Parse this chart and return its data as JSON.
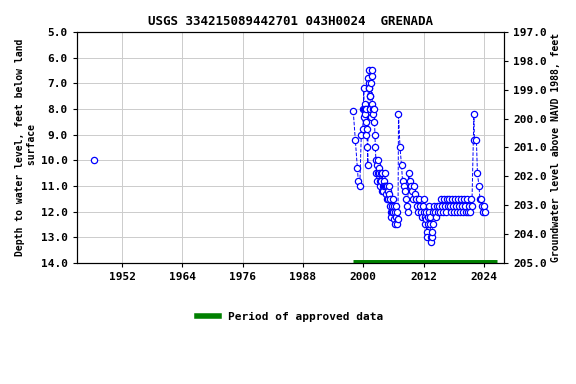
{
  "title": "USGS 334215089442701 043H0024  GRENADA",
  "ylabel_left": "Depth to water level, feet below land\n surface",
  "ylabel_right": "Groundwater level above NAVD 1988, feet",
  "xlim": [
    1943,
    2028
  ],
  "ylim_left": [
    5.0,
    14.0
  ],
  "ylim_right": [
    205.0,
    197.0
  ],
  "xticks": [
    1952,
    1964,
    1976,
    1988,
    2000,
    2012,
    2024
  ],
  "yticks_left": [
    5.0,
    6.0,
    7.0,
    8.0,
    9.0,
    10.0,
    11.0,
    12.0,
    13.0,
    14.0
  ],
  "yticks_right": [
    205.0,
    204.0,
    203.0,
    202.0,
    201.0,
    200.0,
    199.0,
    198.0,
    197.0
  ],
  "background_color": "#ffffff",
  "plot_bg_color": "#ffffff",
  "grid_color": "#cccccc",
  "data_color": "#0000ff",
  "legend_color": "#008000",
  "approved_bar_start": 1998.0,
  "approved_bar_end": 2026.5,
  "approved_bar_y": 14.0,
  "single_point_x": 1946.5,
  "single_point_y": 10.0,
  "data_points": [
    [
      1998.0,
      8.1
    ],
    [
      1998.4,
      9.2
    ],
    [
      1998.8,
      10.3
    ],
    [
      1999.0,
      10.8
    ],
    [
      1999.3,
      11.0
    ],
    [
      1999.6,
      9.0
    ],
    [
      1999.9,
      8.8
    ],
    [
      2000.0,
      8.0
    ],
    [
      2000.1,
      7.2
    ],
    [
      2000.15,
      8.0
    ],
    [
      2000.2,
      8.3
    ],
    [
      2000.3,
      7.8
    ],
    [
      2000.35,
      8.0
    ],
    [
      2000.4,
      8.2
    ],
    [
      2000.5,
      8.5
    ],
    [
      2000.55,
      8.0
    ],
    [
      2000.6,
      9.0
    ],
    [
      2000.7,
      8.8
    ],
    [
      2000.8,
      9.5
    ],
    [
      2000.9,
      10.2
    ],
    [
      2001.0,
      6.8
    ],
    [
      2001.05,
      7.2
    ],
    [
      2001.1,
      7.0
    ],
    [
      2001.15,
      6.5
    ],
    [
      2001.2,
      7.2
    ],
    [
      2001.25,
      7.5
    ],
    [
      2001.3,
      7.5
    ],
    [
      2001.35,
      8.0
    ],
    [
      2001.4,
      8.0
    ],
    [
      2001.5,
      8.3
    ],
    [
      2001.6,
      7.0
    ],
    [
      2001.65,
      6.7
    ],
    [
      2001.7,
      6.5
    ],
    [
      2001.8,
      7.8
    ],
    [
      2001.9,
      8.0
    ],
    [
      2002.0,
      8.2
    ],
    [
      2002.1,
      8.5
    ],
    [
      2002.2,
      8.0
    ],
    [
      2002.3,
      9.0
    ],
    [
      2002.4,
      9.5
    ],
    [
      2002.5,
      10.0
    ],
    [
      2002.6,
      10.5
    ],
    [
      2002.7,
      10.8
    ],
    [
      2002.8,
      10.2
    ],
    [
      2002.9,
      10.5
    ],
    [
      2003.0,
      10.0
    ],
    [
      2003.1,
      10.3
    ],
    [
      2003.2,
      10.5
    ],
    [
      2003.3,
      10.8
    ],
    [
      2003.4,
      11.0
    ],
    [
      2003.5,
      10.5
    ],
    [
      2003.6,
      10.8
    ],
    [
      2003.7,
      11.2
    ],
    [
      2003.8,
      10.5
    ],
    [
      2003.9,
      11.0
    ],
    [
      2004.0,
      11.2
    ],
    [
      2004.1,
      10.8
    ],
    [
      2004.2,
      11.0
    ],
    [
      2004.3,
      10.5
    ],
    [
      2004.4,
      11.0
    ],
    [
      2004.5,
      11.3
    ],
    [
      2004.6,
      11.0
    ],
    [
      2004.7,
      11.5
    ],
    [
      2004.8,
      11.0
    ],
    [
      2004.9,
      11.2
    ],
    [
      2005.0,
      11.5
    ],
    [
      2005.1,
      11.0
    ],
    [
      2005.2,
      11.3
    ],
    [
      2005.3,
      11.8
    ],
    [
      2005.4,
      11.5
    ],
    [
      2005.5,
      12.0
    ],
    [
      2005.6,
      12.2
    ],
    [
      2005.7,
      11.8
    ],
    [
      2005.8,
      12.0
    ],
    [
      2005.9,
      11.5
    ],
    [
      2006.0,
      12.0
    ],
    [
      2006.1,
      11.8
    ],
    [
      2006.2,
      12.3
    ],
    [
      2006.3,
      12.0
    ],
    [
      2006.4,
      12.5
    ],
    [
      2006.5,
      12.2
    ],
    [
      2006.6,
      11.8
    ],
    [
      2006.7,
      12.0
    ],
    [
      2006.8,
      12.5
    ],
    [
      2006.9,
      12.3
    ],
    [
      2007.0,
      8.2
    ],
    [
      2007.3,
      9.5
    ],
    [
      2007.6,
      10.2
    ],
    [
      2007.8,
      10.8
    ],
    [
      2008.0,
      11.0
    ],
    [
      2008.2,
      11.2
    ],
    [
      2008.4,
      11.5
    ],
    [
      2008.6,
      11.8
    ],
    [
      2008.8,
      12.0
    ],
    [
      2009.0,
      10.5
    ],
    [
      2009.2,
      10.8
    ],
    [
      2009.4,
      11.0
    ],
    [
      2009.6,
      11.2
    ],
    [
      2009.8,
      11.5
    ],
    [
      2010.0,
      11.0
    ],
    [
      2010.2,
      11.3
    ],
    [
      2010.4,
      11.5
    ],
    [
      2010.6,
      11.8
    ],
    [
      2010.8,
      12.0
    ],
    [
      2011.0,
      11.5
    ],
    [
      2011.2,
      11.8
    ],
    [
      2011.4,
      12.0
    ],
    [
      2011.6,
      12.2
    ],
    [
      2011.8,
      11.8
    ],
    [
      2012.0,
      12.0
    ],
    [
      2012.1,
      11.5
    ],
    [
      2012.2,
      12.2
    ],
    [
      2012.3,
      12.5
    ],
    [
      2012.4,
      12.0
    ],
    [
      2012.5,
      12.3
    ],
    [
      2012.6,
      12.8
    ],
    [
      2012.7,
      13.0
    ],
    [
      2012.8,
      12.5
    ],
    [
      2012.9,
      12.2
    ],
    [
      2013.0,
      12.0
    ],
    [
      2013.1,
      11.8
    ],
    [
      2013.2,
      12.2
    ],
    [
      2013.3,
      12.5
    ],
    [
      2013.4,
      13.0
    ],
    [
      2013.5,
      13.2
    ],
    [
      2013.6,
      13.0
    ],
    [
      2013.7,
      12.8
    ],
    [
      2013.8,
      12.5
    ],
    [
      2013.9,
      12.0
    ],
    [
      2014.0,
      11.8
    ],
    [
      2014.2,
      12.0
    ],
    [
      2014.4,
      12.2
    ],
    [
      2014.6,
      11.8
    ],
    [
      2014.8,
      12.0
    ],
    [
      2015.0,
      11.8
    ],
    [
      2015.2,
      12.0
    ],
    [
      2015.4,
      11.5
    ],
    [
      2015.6,
      11.8
    ],
    [
      2015.8,
      12.0
    ],
    [
      2016.0,
      11.5
    ],
    [
      2016.2,
      11.8
    ],
    [
      2016.4,
      12.0
    ],
    [
      2016.6,
      11.5
    ],
    [
      2016.8,
      11.8
    ],
    [
      2017.0,
      11.5
    ],
    [
      2017.2,
      11.8
    ],
    [
      2017.4,
      12.0
    ],
    [
      2017.6,
      11.5
    ],
    [
      2017.8,
      11.8
    ],
    [
      2018.0,
      12.0
    ],
    [
      2018.2,
      11.5
    ],
    [
      2018.4,
      11.8
    ],
    [
      2018.6,
      12.0
    ],
    [
      2018.8,
      11.5
    ],
    [
      2019.0,
      11.8
    ],
    [
      2019.2,
      12.0
    ],
    [
      2019.4,
      11.5
    ],
    [
      2019.6,
      11.8
    ],
    [
      2019.8,
      12.0
    ],
    [
      2020.0,
      11.5
    ],
    [
      2020.2,
      11.8
    ],
    [
      2020.4,
      12.0
    ],
    [
      2020.6,
      11.5
    ],
    [
      2020.8,
      12.0
    ],
    [
      2021.0,
      11.8
    ],
    [
      2021.2,
      12.0
    ],
    [
      2021.4,
      11.5
    ],
    [
      2021.6,
      11.8
    ],
    [
      2022.0,
      8.2
    ],
    [
      2022.1,
      9.2
    ],
    [
      2022.5,
      9.2
    ],
    [
      2022.7,
      10.5
    ],
    [
      2023.0,
      11.0
    ],
    [
      2023.2,
      11.5
    ],
    [
      2023.4,
      11.5
    ],
    [
      2023.6,
      11.8
    ],
    [
      2023.8,
      12.0
    ],
    [
      2024.0,
      11.8
    ],
    [
      2024.3,
      12.0
    ]
  ]
}
